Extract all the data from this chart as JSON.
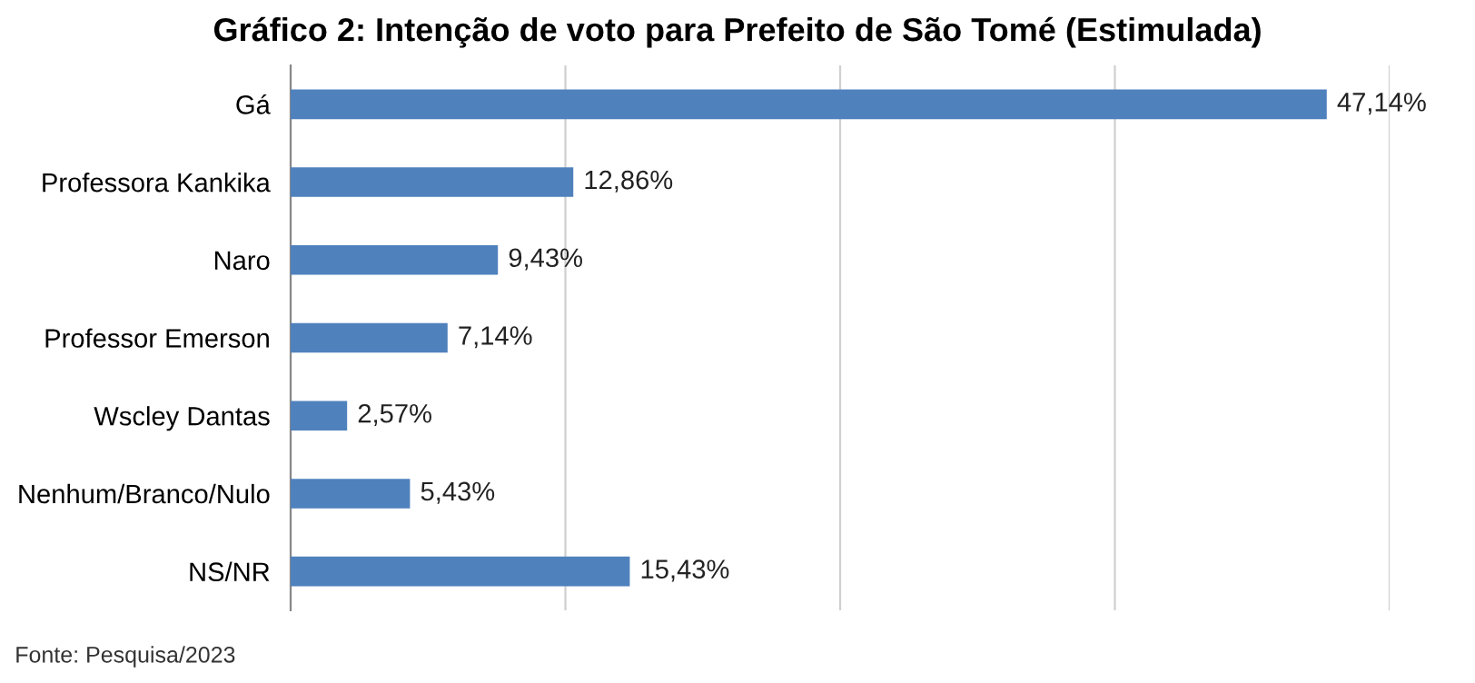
{
  "chart_data": {
    "type": "bar",
    "orientation": "horizontal",
    "title": "Gráfico 2: Intenção de voto para Prefeito de São Tomé (Estimulada)",
    "categories": [
      "Gá",
      "Professora Kankika",
      "Naro",
      "Professor Emerson",
      "Wscley Dantas",
      "Nenhum/Branco/Nulo",
      "NS/NR"
    ],
    "values": [
      47.14,
      12.86,
      9.43,
      7.14,
      2.57,
      5.43,
      15.43
    ],
    "value_labels": [
      "47,14%",
      "12,86%",
      "9,43%",
      "7,14%",
      "2,57%",
      "5,43%",
      "15,43%"
    ],
    "color": "#4f81bd",
    "xlim": [
      0,
      50
    ],
    "xticks": [
      {
        "value": 0,
        "label": null
      },
      {
        "value": 12.5,
        "label": null
      },
      {
        "value": 25,
        "label": null
      },
      {
        "value": 37.5,
        "label": null
      },
      {
        "value": 50,
        "label": null
      }
    ],
    "grid": "x",
    "tick_labels": "y",
    "legend": false,
    "annotations": [
      "Fonte: Pesquisa/2023"
    ]
  }
}
